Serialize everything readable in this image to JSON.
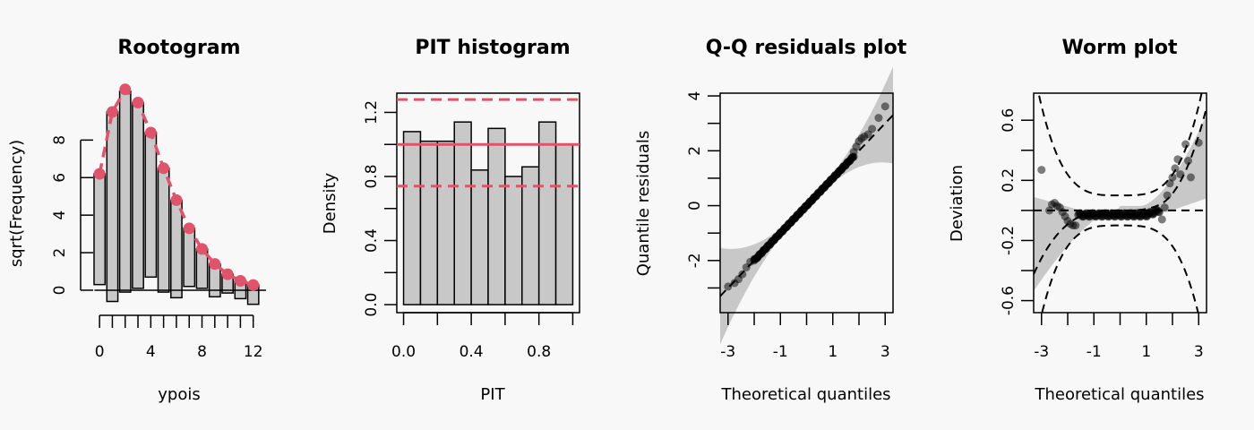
{
  "colors": {
    "accent": "#DF536B",
    "bar": "#C8C8C8",
    "band": "#C8C8C8",
    "background": "#F8F8F8",
    "point": "#000000"
  },
  "chart_data": [
    {
      "type": "bar",
      "title": "Rootogram",
      "xlabel": "ypois",
      "ylabel": "sqrt(Frequency)",
      "xlim": [
        -0.5,
        13
      ],
      "ylim": [
        -1.1,
        10.5
      ],
      "x_ticks": [
        "0",
        "4",
        "8",
        "12"
      ],
      "y_ticks": [
        "0",
        "2",
        "4",
        "6",
        "8"
      ],
      "bars": [
        {
          "x": 0,
          "top": 6.2,
          "bottom": 0.3
        },
        {
          "x": 1,
          "top": 9.5,
          "bottom": -0.6
        },
        {
          "x": 2,
          "top": 10.6,
          "bottom": -0.1
        },
        {
          "x": 3,
          "top": 10.0,
          "bottom": 0.1
        },
        {
          "x": 4,
          "top": 8.4,
          "bottom": 0.7
        },
        {
          "x": 5,
          "top": 6.5,
          "bottom": -0.1
        },
        {
          "x": 6,
          "top": 4.8,
          "bottom": -0.4
        },
        {
          "x": 7,
          "top": 3.3,
          "bottom": 0.2
        },
        {
          "x": 8,
          "top": 2.2,
          "bottom": 0.1
        },
        {
          "x": 9,
          "top": 1.4,
          "bottom": -0.35
        },
        {
          "x": 10,
          "top": 0.85,
          "bottom": -0.15
        },
        {
          "x": 11,
          "top": 0.5,
          "bottom": -0.45
        },
        {
          "x": 12,
          "top": 0.28,
          "bottom": -0.75
        }
      ],
      "expected": [
        6.2,
        9.5,
        10.7,
        10.0,
        8.4,
        6.5,
        4.8,
        3.3,
        2.2,
        1.4,
        0.85,
        0.5,
        0.28
      ]
    },
    {
      "type": "bar",
      "title": "PIT histogram",
      "xlabel": "PIT",
      "ylabel": "Density",
      "xlim": [
        -0.04,
        1.04
      ],
      "ylim": [
        -0.05,
        1.32
      ],
      "x_ticks": [
        "0.0",
        "0.4",
        "0.8"
      ],
      "y_ticks": [
        "0.0",
        "0.4",
        "0.8",
        "1.2"
      ],
      "bin_width": 0.1,
      "values": [
        1.08,
        1.02,
        1.02,
        1.14,
        0.84,
        1.1,
        0.8,
        0.86,
        1.14,
        1.0
      ],
      "reference_line": 1.0,
      "confidence_band": [
        0.74,
        1.28
      ]
    },
    {
      "type": "scatter",
      "title": "Q-Q residuals plot",
      "xlabel": "Theoretical quantiles",
      "ylabel": "Quantile residuals",
      "xlim": [
        -3.3,
        3.3
      ],
      "ylim": [
        -3.9,
        4.1
      ],
      "x_ticks": [
        "-3",
        "-1",
        "1",
        "3"
      ],
      "y_ticks": [
        "-2",
        "0",
        "2",
        "4"
      ],
      "points": [
        [
          -3.0,
          -2.95
        ],
        [
          -2.75,
          -2.82
        ],
        [
          -2.6,
          -2.68
        ],
        [
          -2.45,
          -2.5
        ],
        [
          -2.3,
          -2.25
        ],
        [
          -2.15,
          -2.05
        ],
        [
          -2.0,
          -1.95
        ],
        [
          1.8,
          1.95
        ],
        [
          1.9,
          2.15
        ],
        [
          2.0,
          2.35
        ],
        [
          2.1,
          2.45
        ],
        [
          2.2,
          2.52
        ],
        [
          2.35,
          2.6
        ],
        [
          2.5,
          2.8
        ],
        [
          2.75,
          3.2
        ],
        [
          3.0,
          3.62
        ]
      ],
      "reference_line": {
        "slope": 1,
        "intercept": 0
      }
    },
    {
      "type": "scatter",
      "title": "Worm plot",
      "xlabel": "Theoretical quantiles",
      "ylabel": "Deviation",
      "xlim": [
        -3.3,
        3.3
      ],
      "ylim": [
        -0.68,
        0.78
      ],
      "x_ticks": [
        "-3",
        "-1",
        "1",
        "3"
      ],
      "y_ticks": [
        "-0.6",
        "-0.2",
        "0.2",
        "0.6"
      ],
      "points": [
        [
          -3.0,
          0.27
        ],
        [
          -2.7,
          0.0
        ],
        [
          -2.6,
          0.04
        ],
        [
          -2.5,
          0.05
        ],
        [
          -2.4,
          0.03
        ],
        [
          -2.3,
          0.02
        ],
        [
          -2.2,
          -0.01
        ],
        [
          -2.1,
          -0.04
        ],
        [
          -2.0,
          -0.07
        ],
        [
          -1.9,
          -0.09
        ],
        [
          -1.8,
          -0.1
        ],
        [
          -1.7,
          -0.1
        ],
        [
          1.6,
          -0.06
        ],
        [
          1.7,
          0.02
        ],
        [
          1.8,
          0.1
        ],
        [
          1.9,
          0.18
        ],
        [
          2.0,
          0.22
        ],
        [
          2.1,
          0.28
        ],
        [
          2.2,
          0.34
        ],
        [
          2.3,
          0.24
        ],
        [
          2.5,
          0.44
        ],
        [
          2.6,
          0.33
        ],
        [
          2.7,
          0.22
        ],
        [
          3.0,
          0.45
        ]
      ]
    }
  ]
}
